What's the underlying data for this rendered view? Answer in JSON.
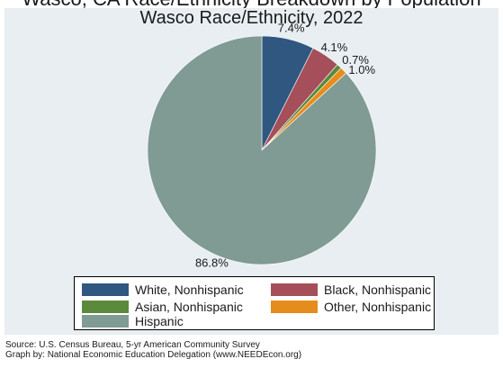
{
  "top_cut_text": "Wasco, CA Race/Ethnicity Breakdown by Population",
  "chart_data": {
    "type": "pie",
    "title": "Wasco Race/Ethnicity, 2022",
    "slices": [
      {
        "label": "White, Nonhispanic",
        "value": 7.4,
        "text": "7.4%",
        "color": "#2f5780"
      },
      {
        "label": "Black, Nonhispanic",
        "value": 4.1,
        "text": "4.1%",
        "color": "#a44f59"
      },
      {
        "label": "Asian, Nonhispanic",
        "value": 0.7,
        "text": "0.7%",
        "color": "#5b8a3c"
      },
      {
        "label": "Other, Nonhispanic",
        "value": 1.0,
        "text": "1.0%",
        "color": "#e68c1c"
      },
      {
        "label": "Hispanic",
        "value": 86.8,
        "text": "86.8%",
        "color": "#7f9b93"
      }
    ],
    "legend_position": "bottom"
  },
  "footer": {
    "source": "Source:  U.S. Census Bureau, 5-yr American Community Survey",
    "credit": "Graph by: National Economic Education Delegation (www.NEEDEcon.org)"
  }
}
